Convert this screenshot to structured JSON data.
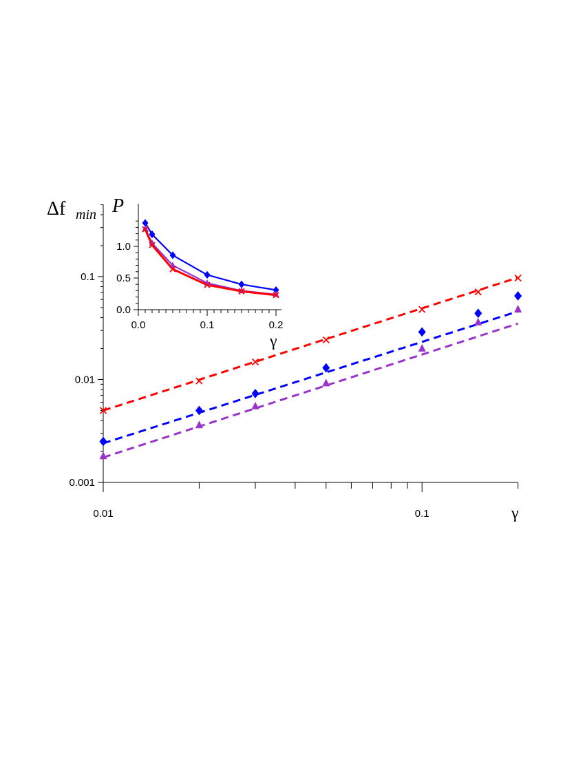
{
  "chart_data": [
    {
      "type": "scatter",
      "scale": "log-log",
      "title": "",
      "xlabel": "γ",
      "ylabel_main": "Δf",
      "ylabel_sub": "min",
      "xlim": [
        0.01,
        0.2
      ],
      "ylim": [
        0.001,
        0.5
      ],
      "x_tick_labels": [
        "0.01",
        "0.1"
      ],
      "y_tick_labels": [
        "0.001",
        "0.01",
        "0.1"
      ],
      "series": [
        {
          "color": "#ff0000",
          "marker": "x",
          "points": {
            "x": [
              0.01,
              0.02,
              0.03,
              0.05,
              0.1,
              0.15,
              0.2
            ],
            "y": [
              0.005,
              0.0097,
              0.0148,
              0.0243,
              0.048,
              0.071,
              0.097
            ]
          },
          "fit": {
            "x": [
              0.01,
              0.2
            ],
            "y": [
              0.005,
              0.098
            ]
          }
        },
        {
          "color": "#0000ff",
          "marker": "diamond",
          "points": {
            "x": [
              0.01,
              0.02,
              0.03,
              0.05,
              0.1,
              0.15,
              0.2
            ],
            "y": [
              0.0025,
              0.005,
              0.0073,
              0.013,
              0.029,
              0.044,
              0.065
            ]
          },
          "fit": {
            "x": [
              0.01,
              0.2
            ],
            "y": [
              0.0024,
              0.046
            ]
          }
        },
        {
          "color": "#9933cc",
          "marker": "triangle",
          "points": {
            "x": [
              0.01,
              0.02,
              0.03,
              0.05,
              0.1,
              0.15,
              0.2
            ],
            "y": [
              0.0018,
              0.0036,
              0.0055,
              0.0092,
              0.02,
              0.036,
              0.048
            ]
          },
          "fit": {
            "x": [
              0.01,
              0.2
            ],
            "y": [
              0.00175,
              0.035
            ]
          }
        }
      ]
    },
    {
      "type": "line",
      "title": "",
      "xlabel": "γ",
      "ylabel": "P",
      "xlim": [
        0,
        0.2
      ],
      "ylim": [
        0,
        1.45
      ],
      "x_tick_labels": [
        "0.0",
        "0.1",
        "0.2"
      ],
      "y_tick_labels": [
        "0.0",
        "0.5",
        "1.0"
      ],
      "series": [
        {
          "color": "#0000ff",
          "marker": "diamond",
          "x": [
            0.01,
            0.02,
            0.05,
            0.1,
            0.15,
            0.2
          ],
          "y": [
            1.37,
            1.19,
            0.86,
            0.55,
            0.4,
            0.31
          ]
        },
        {
          "color": "#9933cc",
          "marker": "triangle",
          "x": [
            0.01,
            0.02,
            0.05,
            0.1,
            0.15,
            0.2
          ],
          "y": [
            1.28,
            1.05,
            0.7,
            0.42,
            0.3,
            0.24
          ]
        },
        {
          "color": "#ff0000",
          "marker": "x",
          "x": [
            0.01,
            0.02,
            0.05,
            0.1,
            0.15,
            0.2
          ],
          "y": [
            1.27,
            1.02,
            0.64,
            0.39,
            0.29,
            0.23
          ]
        }
      ]
    }
  ]
}
